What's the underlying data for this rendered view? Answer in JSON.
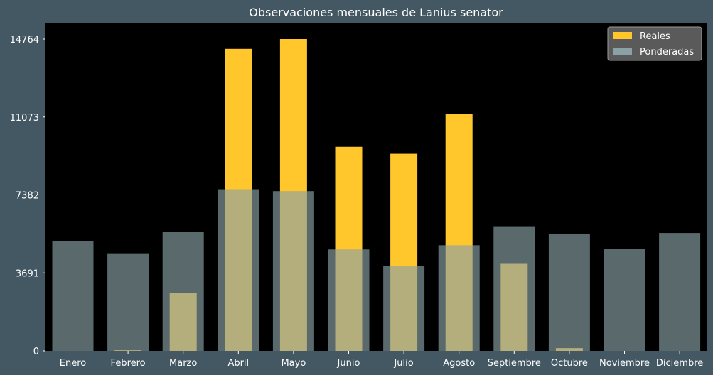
{
  "chart_data": {
    "type": "bar",
    "title": "Observaciones mensuales de Lanius senator",
    "xlabel": "",
    "ylabel": "",
    "categories": [
      "Enero",
      "Febrero",
      "Marzo",
      "Abril",
      "Mayo",
      "Junio",
      "Julio",
      "Agosto",
      "Septiembre",
      "Octubre",
      "Noviembre",
      "Diciembre"
    ],
    "yticks": [
      "0",
      "3691",
      "7382",
      "11073",
      "14764"
    ],
    "ylim": [
      0,
      14764
    ],
    "grid": false,
    "legend_position": "top-right",
    "series": [
      {
        "name": "Reales",
        "color": "#ffc72c",
        "values": [
          0,
          30,
          2750,
          14300,
          14764,
          9660,
          9330,
          11230,
          4120,
          130,
          0,
          0
        ]
      },
      {
        "name": "Ponderadas",
        "color": "#8aa1a6",
        "opacity": 0.65,
        "values": [
          5200,
          4620,
          5650,
          7650,
          7560,
          4800,
          4010,
          5000,
          5900,
          5550,
          4830,
          5580
        ]
      }
    ],
    "colors": {
      "background": "#435863",
      "plot_background": "#000000",
      "text": "#ffffff"
    }
  }
}
